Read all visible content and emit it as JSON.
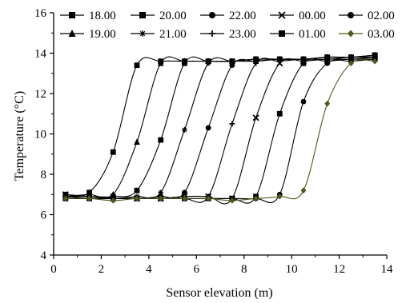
{
  "chart_data": {
    "type": "line",
    "title": "",
    "xlabel": "Sensor elevation (m)",
    "ylabel": "Temperature (°C)",
    "xlim": [
      0,
      14
    ],
    "ylim": [
      4,
      16
    ],
    "xticks": [
      0,
      2,
      4,
      6,
      8,
      10,
      12,
      14
    ],
    "yticks": [
      4,
      6,
      8,
      10,
      12,
      14,
      16
    ],
    "grid": false,
    "legend_position": "top",
    "x": [
      0.5,
      1.5,
      2.5,
      3.5,
      4.5,
      5.5,
      6.5,
      7.5,
      8.5,
      9.5,
      10.5,
      11.5,
      12.5,
      13.5
    ],
    "series": [
      {
        "name": "18.00",
        "marker": "square",
        "color": "#000000",
        "values": [
          7.0,
          7.1,
          9.1,
          13.4,
          13.6,
          13.6,
          13.6,
          13.6,
          13.7,
          13.7,
          13.7,
          13.8,
          13.8,
          13.9
        ]
      },
      {
        "name": "19.00",
        "marker": "triangle",
        "color": "#000000",
        "values": [
          6.9,
          7.0,
          7.0,
          9.6,
          13.5,
          13.6,
          13.6,
          13.6,
          13.7,
          13.7,
          13.7,
          13.8,
          13.8,
          13.9
        ]
      },
      {
        "name": "20.00",
        "marker": "square",
        "color": "#000000",
        "values": [
          6.9,
          6.9,
          6.9,
          7.2,
          9.7,
          13.5,
          13.6,
          13.6,
          13.7,
          13.7,
          13.7,
          13.8,
          13.8,
          13.9
        ]
      },
      {
        "name": "21.00",
        "marker": "star",
        "color": "#000000",
        "values": [
          6.9,
          6.8,
          6.8,
          6.9,
          7.1,
          10.2,
          13.5,
          13.6,
          13.6,
          13.7,
          13.7,
          13.8,
          13.8,
          13.8
        ]
      },
      {
        "name": "22.00",
        "marker": "circle",
        "color": "#000000",
        "values": [
          6.8,
          6.8,
          6.8,
          6.8,
          6.9,
          7.1,
          10.3,
          13.4,
          13.6,
          13.7,
          13.7,
          13.7,
          13.8,
          13.8
        ]
      },
      {
        "name": "23.00",
        "marker": "cross",
        "color": "#000000",
        "values": [
          6.8,
          6.8,
          6.8,
          6.8,
          6.8,
          6.8,
          6.9,
          10.5,
          13.5,
          13.6,
          13.7,
          13.7,
          13.8,
          13.8
        ]
      },
      {
        "name": "00.00",
        "marker": "x",
        "color": "#000000",
        "values": [
          7.0,
          6.9,
          6.8,
          6.8,
          6.8,
          6.9,
          6.9,
          6.8,
          10.8,
          13.5,
          13.6,
          13.7,
          13.7,
          13.8
        ]
      },
      {
        "name": "01.00",
        "marker": "square",
        "color": "#000000",
        "values": [
          6.8,
          6.8,
          6.8,
          6.8,
          6.8,
          6.8,
          6.8,
          6.8,
          6.9,
          11.0,
          13.5,
          13.6,
          13.7,
          13.7
        ]
      },
      {
        "name": "02.00",
        "marker": "circle",
        "color": "#000000",
        "values": [
          6.8,
          6.8,
          6.8,
          6.8,
          6.8,
          6.8,
          6.8,
          6.8,
          6.8,
          7.0,
          11.6,
          13.5,
          13.6,
          13.7
        ]
      },
      {
        "name": "03.00",
        "marker": "diamond",
        "color": "#55551e",
        "values": [
          6.8,
          6.8,
          6.7,
          6.8,
          6.8,
          6.8,
          6.8,
          6.7,
          6.8,
          6.9,
          7.2,
          11.5,
          13.5,
          13.6
        ]
      }
    ]
  }
}
